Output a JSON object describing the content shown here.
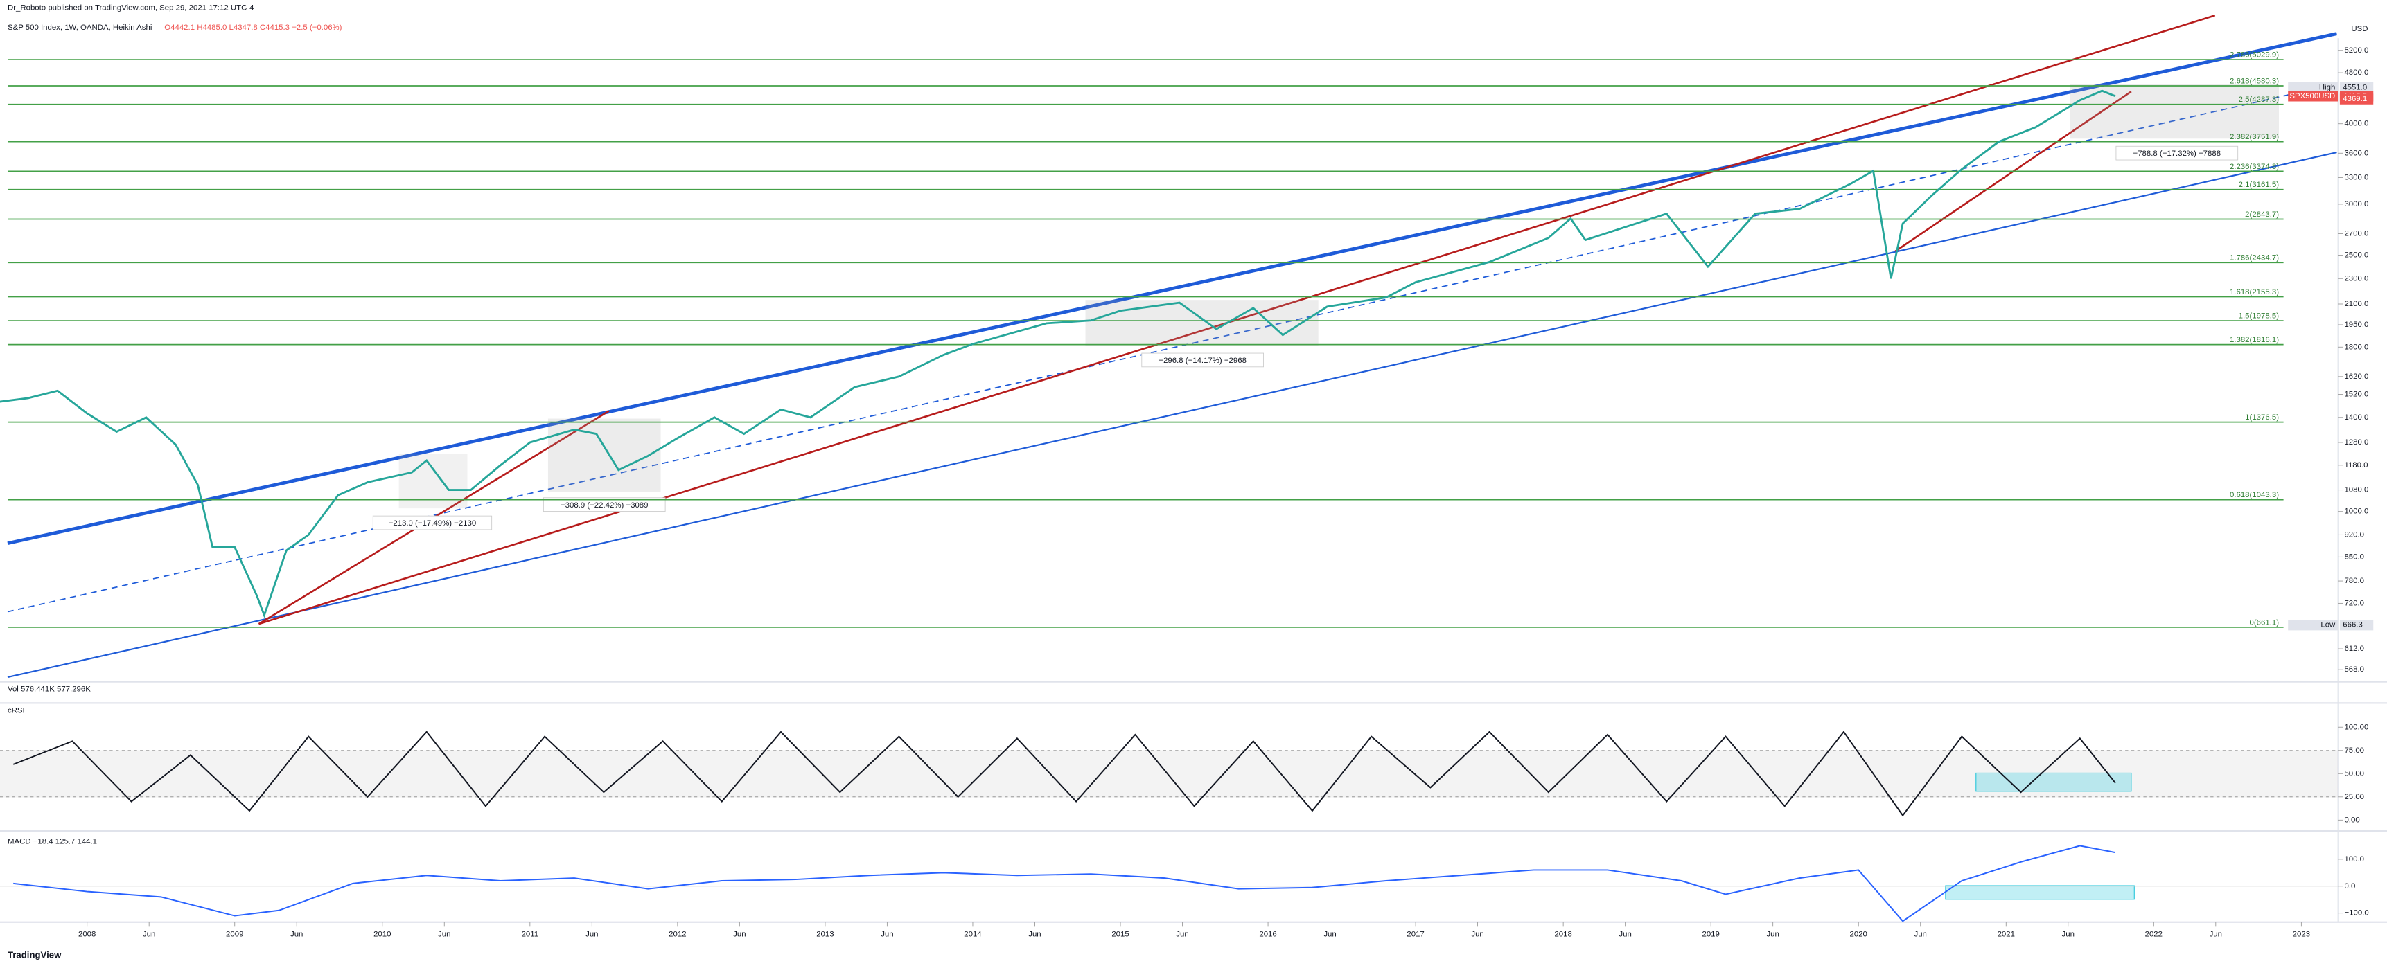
{
  "header": {
    "publisher": "Dr_Roboto published on TradingView.com, Sep 29, 2021 17:12 UTC-4",
    "symbol": "S&P 500 Index, 1W, OANDA, Heikin Ashi",
    "ohlc": "O4442.1 H4485.0 L4347.8 C4415.3 −2.5 (−0.06%)"
  },
  "volume_label": "Vol 576.441K 577.296K",
  "footer": "TradingView",
  "axis_unit": "USD",
  "chart_data": [
    {
      "type": "line",
      "log_scale": true,
      "x": [
        2007.4,
        2007.6,
        2007.8,
        2008.0,
        2008.2,
        2008.4,
        2008.6,
        2008.75,
        2008.85,
        2009.0,
        2009.15,
        2009.2,
        2009.35,
        2009.5,
        2009.7,
        2009.9,
        2010.2,
        2010.3,
        2010.45,
        2010.6,
        2010.8,
        2011.0,
        2011.3,
        2011.45,
        2011.6,
        2011.8,
        2012.0,
        2012.25,
        2012.45,
        2012.7,
        2012.9,
        2013.2,
        2013.5,
        2013.8,
        2014.0,
        2014.5,
        2014.8,
        2015.0,
        2015.4,
        2015.65,
        2015.9,
        2016.1,
        2016.4,
        2016.8,
        2017.0,
        2017.5,
        2017.9,
        2018.05,
        2018.15,
        2018.7,
        2018.98,
        2019.3,
        2019.6,
        2019.95,
        2020.1,
        2020.22,
        2020.3,
        2020.5,
        2020.7,
        2020.95,
        2021.2,
        2021.5,
        2021.65,
        2021.74
      ],
      "series": [
        {
          "name": "SPX500USD",
          "color": "#26a69a",
          "values": [
            1480,
            1500,
            1540,
            1420,
            1330,
            1400,
            1270,
            1100,
            880,
            880,
            740,
            690,
            870,
            920,
            1060,
            1110,
            1150,
            1200,
            1080,
            1080,
            1180,
            1280,
            1340,
            1320,
            1160,
            1220,
            1300,
            1400,
            1320,
            1440,
            1400,
            1560,
            1620,
            1750,
            1820,
            1960,
            1980,
            2050,
            2110,
            1920,
            2070,
            1880,
            2080,
            2150,
            2270,
            2440,
            2660,
            2850,
            2640,
            2900,
            2400,
            2900,
            2950,
            3230,
            3380,
            2300,
            2800,
            3100,
            3400,
            3750,
            3950,
            4350,
            4500,
            4415
          ]
        }
      ],
      "xlim": [
        2007.41,
        2023.24
      ],
      "xticks": [
        2008,
        {
          "value": 2008.42,
          "label": "Jun"
        },
        2009,
        {
          "value": 2009.42,
          "label": "Jun"
        },
        2010,
        {
          "value": 2010.42,
          "label": "Jun"
        },
        2011,
        {
          "value": 2011.42,
          "label": "Jun"
        },
        2012,
        {
          "value": 2012.42,
          "label": "Jun"
        },
        2013,
        {
          "value": 2013.42,
          "label": "Jun"
        },
        2014,
        {
          "value": 2014.42,
          "label": "Jun"
        },
        2015,
        {
          "value": 2015.42,
          "label": "Jun"
        },
        2016,
        {
          "value": 2016.42,
          "label": "Jun"
        },
        2017,
        {
          "value": 2017.42,
          "label": "Jun"
        },
        2018,
        {
          "value": 2018.42,
          "label": "Jun"
        },
        2019,
        {
          "value": 2019.42,
          "label": "Jun"
        },
        2020,
        {
          "value": 2020.42,
          "label": "Jun"
        },
        2021,
        {
          "value": 2021.42,
          "label": "Jun"
        },
        2022,
        {
          "value": 2022.42,
          "label": "Jun"
        },
        2023
      ],
      "ylim": [
        544,
        5430
      ],
      "yticks": [
        {
          "value": 5200,
          "label": "5200.0"
        },
        {
          "value": 4800,
          "label": "4800.0"
        },
        {
          "value": 4000,
          "label": "4000.0"
        },
        {
          "value": 3600,
          "label": "3600.0"
        },
        {
          "value": 3300,
          "label": "3300.0"
        },
        {
          "value": 3000,
          "label": "3000.0"
        },
        {
          "value": 2700,
          "label": "2700.0"
        },
        {
          "value": 2500,
          "label": "2500.0"
        },
        {
          "value": 2300,
          "label": "2300.0"
        },
        {
          "value": 2100,
          "label": "2100.0"
        },
        {
          "value": 1950,
          "label": "1950.0"
        },
        {
          "value": 1800,
          "label": "1800.0"
        },
        {
          "value": 1620,
          "label": "1620.0"
        },
        {
          "value": 1520,
          "label": "1520.0"
        },
        {
          "value": 1400,
          "label": "1400.0"
        },
        {
          "value": 1280,
          "label": "1280.0"
        },
        {
          "value": 1180,
          "label": "1180.0"
        },
        {
          "value": 1080,
          "label": "1080.0"
        },
        {
          "value": 1000,
          "label": "1000.0"
        },
        {
          "value": 920,
          "label": "920.0"
        },
        {
          "value": 850,
          "label": "850.0"
        },
        {
          "value": 780,
          "label": "780.0"
        },
        {
          "value": 720,
          "label": "720.0"
        },
        {
          "value": 612,
          "label": "612.0"
        },
        {
          "value": 568,
          "label": "568.0"
        }
      ],
      "fib_levels": [
        {
          "label": "2.786(5029.9)",
          "price": 5029.9
        },
        {
          "label": "2.618(4580.3)",
          "price": 4580.3
        },
        {
          "label": "2.5(4287.3)",
          "price": 4287.3
        },
        {
          "label": "2.382(3751.9)",
          "price": 3751.9
        },
        {
          "label": "2.236(3374.8)",
          "price": 3374.8
        },
        {
          "label": "2.1(3161.5)",
          "price": 3161.5
        },
        {
          "label": "2(2843.7)",
          "price": 2843.7
        },
        {
          "label": "1.786(2434.7)",
          "price": 2434.7
        },
        {
          "label": "1.618(2155.3)",
          "price": 2155.3
        },
        {
          "label": "1.5(1978.5)",
          "price": 1978.5
        },
        {
          "label": "1.382(1816.1)",
          "price": 1816.1
        },
        {
          "label": "1(1376.5)",
          "price": 1376.5
        },
        {
          "label": "0.618(1043.3)",
          "price": 1043.3
        },
        {
          "label": "0(661.1)",
          "price": 661.1
        }
      ],
      "price_tags": [
        {
          "caption": "High",
          "value": 4551.0,
          "label": "4551.0",
          "color": "#e0e3eb"
        },
        {
          "caption": "SPX500USD",
          "value": 4415.3,
          "label": "4415.3",
          "color": "#ef5350"
        },
        {
          "caption": "",
          "value": 4369.1,
          "label": "4369.1",
          "color": "#ef5350"
        },
        {
          "caption": "Low",
          "value": 666.3,
          "label": "666.3",
          "color": "#e0e3eb"
        }
      ],
      "annotations": [
        "−213.0 (−17.49%) −2130",
        "−308.9 (−22.42%) −3089",
        "−296.8 (−14.17%) −2968",
        "−788.8 (−17.32%) −7888"
      ]
    },
    {
      "type": "line",
      "title": "cRSI",
      "x": [
        2007.5,
        2007.9,
        2008.3,
        2008.7,
        2009.1,
        2009.5,
        2009.9,
        2010.3,
        2010.7,
        2011.1,
        2011.5,
        2011.9,
        2012.3,
        2012.7,
        2013.1,
        2013.5,
        2013.9,
        2014.3,
        2014.7,
        2015.1,
        2015.5,
        2015.9,
        2016.3,
        2016.7,
        2017.1,
        2017.5,
        2017.9,
        2018.3,
        2018.7,
        2019.1,
        2019.5,
        2019.9,
        2020.3,
        2020.7,
        2021.1,
        2021.5,
        2021.74
      ],
      "series": [
        {
          "name": "cRSI",
          "color": "#131722",
          "values": [
            60,
            85,
            20,
            70,
            10,
            90,
            25,
            95,
            15,
            90,
            30,
            85,
            20,
            95,
            30,
            90,
            25,
            88,
            20,
            92,
            15,
            85,
            10,
            90,
            35,
            95,
            30,
            92,
            20,
            90,
            15,
            95,
            5,
            90,
            30,
            88,
            40
          ]
        }
      ],
      "xlim": [
        2007.41,
        2023.24
      ],
      "ylim": [
        -10,
        126
      ],
      "yticks": [
        {
          "value": 100,
          "label": "100.00"
        },
        {
          "value": 75,
          "label": "75.00"
        },
        {
          "value": 50,
          "label": "50.00"
        },
        {
          "value": 25,
          "label": "25.00"
        },
        {
          "value": 0,
          "label": "0.00"
        }
      ]
    },
    {
      "type": "line",
      "title": "MACD −18.4 125.7 144.1",
      "x": [
        2007.5,
        2008.0,
        2008.5,
        2009.0,
        2009.3,
        2009.8,
        2010.3,
        2010.8,
        2011.3,
        2011.8,
        2012.3,
        2012.8,
        2013.3,
        2013.8,
        2014.3,
        2014.8,
        2015.3,
        2015.8,
        2016.3,
        2016.8,
        2017.3,
        2017.8,
        2018.3,
        2018.8,
        2019.1,
        2019.6,
        2020.0,
        2020.3,
        2020.7,
        2021.1,
        2021.5,
        2021.74
      ],
      "series": [
        {
          "name": "MACD",
          "color": "#2962ff",
          "values": [
            10,
            -20,
            -40,
            -110,
            -90,
            10,
            40,
            20,
            30,
            -10,
            20,
            25,
            40,
            50,
            40,
            45,
            30,
            -10,
            -5,
            20,
            40,
            60,
            60,
            20,
            -30,
            30,
            60,
            -130,
            20,
            90,
            150,
            125
          ]
        }
      ],
      "xlim": [
        2007.41,
        2023.24
      ],
      "ylim": [
        -128,
        194
      ],
      "yticks": [
        {
          "value": 100,
          "label": "100.0"
        },
        {
          "value": 0,
          "label": "0.0"
        },
        {
          "value": -100,
          "label": "−100.0"
        }
      ]
    }
  ]
}
